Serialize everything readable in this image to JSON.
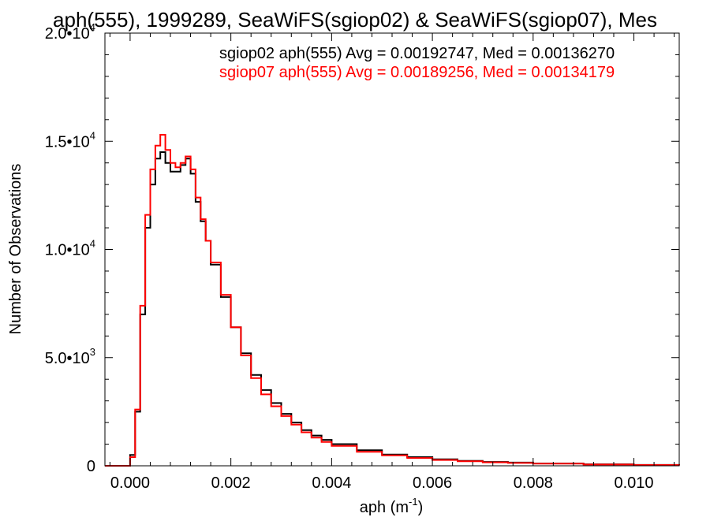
{
  "chart_data": {
    "type": "line",
    "title": "aph(555), 1999289, SeaWiFS(sgiop02) & SeaWiFS(sgiop07), Mes",
    "xlabel": "aph (m",
    "xlabel_exp": "-1",
    "xlabel_close": ")",
    "ylabel": "Number of Observations",
    "xlim": [
      -0.0005,
      0.0109
    ],
    "ylim": [
      0,
      20000
    ],
    "grid": false,
    "legend_position": "top-right",
    "x_ticks": [
      {
        "value": 0.0,
        "label": "0.000"
      },
      {
        "value": 0.002,
        "label": "0.002"
      },
      {
        "value": 0.004,
        "label": "0.004"
      },
      {
        "value": 0.006,
        "label": "0.006"
      },
      {
        "value": 0.008,
        "label": "0.008"
      },
      {
        "value": 0.01,
        "label": "0.010"
      }
    ],
    "y_ticks": [
      {
        "value": 0,
        "mant": "0",
        "exp": ""
      },
      {
        "value": 5000,
        "mant": "5.0•10",
        "exp": "3"
      },
      {
        "value": 10000,
        "mant": "1.0•10",
        "exp": "4"
      },
      {
        "value": 15000,
        "mant": "1.5•10",
        "exp": "4"
      },
      {
        "value": 20000,
        "mant": "2.0•10",
        "exp": "4"
      }
    ],
    "x": [
      -0.0005,
      -0.0002,
      0.0,
      0.0001,
      0.0002,
      0.0003,
      0.0004,
      0.0005,
      0.0006,
      0.0007,
      0.0008,
      0.0009,
      0.001,
      0.0011,
      0.0012,
      0.0013,
      0.0014,
      0.0015,
      0.0016,
      0.0018,
      0.002,
      0.0022,
      0.0024,
      0.0026,
      0.0028,
      0.003,
      0.0032,
      0.0034,
      0.0036,
      0.0038,
      0.004,
      0.0045,
      0.005,
      0.0055,
      0.006,
      0.0065,
      0.007,
      0.0075,
      0.008,
      0.009,
      0.01,
      0.0109
    ],
    "series": [
      {
        "name": "sgiop02 aph(555) Avg = 0.00192747, Med = 0.00136270",
        "color": "#000000",
        "values": [
          0,
          0,
          500,
          2500,
          7000,
          11000,
          13000,
          14200,
          14500,
          14000,
          13600,
          13600,
          13900,
          14200,
          13500,
          12200,
          11300,
          10400,
          9300,
          7800,
          6400,
          5200,
          4200,
          3500,
          2900,
          2400,
          2000,
          1650,
          1400,
          1200,
          1000,
          720,
          520,
          400,
          300,
          230,
          180,
          150,
          110,
          70,
          40,
          20
        ]
      },
      {
        "name": "sgiop07 aph(555) Avg = 0.00189256, Med = 0.00134179",
        "color": "#ff0000",
        "values": [
          0,
          0,
          400,
          2600,
          7400,
          11600,
          13700,
          14800,
          15300,
          14600,
          14000,
          13800,
          14000,
          14300,
          13700,
          12400,
          11400,
          10400,
          9400,
          7900,
          6400,
          5100,
          4050,
          3300,
          2750,
          2300,
          1900,
          1550,
          1300,
          1100,
          920,
          650,
          480,
          360,
          270,
          210,
          160,
          130,
          100,
          60,
          35,
          20
        ]
      }
    ]
  }
}
